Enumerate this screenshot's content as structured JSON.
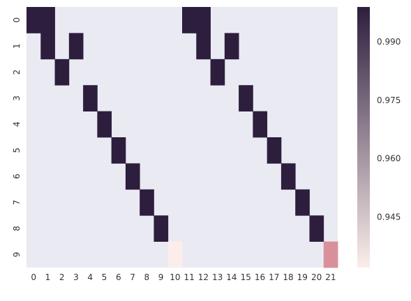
{
  "chart_data": {
    "type": "heatmap",
    "title": "",
    "xlabel": "",
    "ylabel": "",
    "x_tick_labels": [
      "0",
      "1",
      "2",
      "3",
      "4",
      "5",
      "6",
      "7",
      "8",
      "9",
      "10",
      "11",
      "12",
      "13",
      "14",
      "15",
      "16",
      "17",
      "18",
      "19",
      "20",
      "21"
    ],
    "y_tick_labels": [
      "0",
      "1",
      "2",
      "3",
      "4",
      "5",
      "6",
      "7",
      "8",
      "9"
    ],
    "background_color": "#eaeaf2",
    "colormap": [
      "#fbeeea",
      "#f1c8bf",
      "#d98c98",
      "#a65c86",
      "#6b3a6e",
      "#2d1e3e"
    ],
    "color_range": [
      0.932,
      0.999
    ],
    "colorbar_ticks": [
      {
        "label": "0.990",
        "value": 0.99
      },
      {
        "label": "0.975",
        "value": 0.975
      },
      {
        "label": "0.960",
        "value": 0.96
      },
      {
        "label": "0.945",
        "value": 0.945
      }
    ],
    "cells": [
      {
        "row": 0,
        "col": 0,
        "value": 0.999
      },
      {
        "row": 0,
        "col": 1,
        "value": 0.999
      },
      {
        "row": 0,
        "col": 11,
        "value": 0.999
      },
      {
        "row": 0,
        "col": 12,
        "value": 0.999
      },
      {
        "row": 1,
        "col": 1,
        "value": 0.999
      },
      {
        "row": 1,
        "col": 3,
        "value": 0.999
      },
      {
        "row": 1,
        "col": 12,
        "value": 0.999
      },
      {
        "row": 1,
        "col": 14,
        "value": 0.999
      },
      {
        "row": 2,
        "col": 2,
        "value": 0.999
      },
      {
        "row": 2,
        "col": 13,
        "value": 0.999
      },
      {
        "row": 3,
        "col": 4,
        "value": 0.999
      },
      {
        "row": 3,
        "col": 15,
        "value": 0.999
      },
      {
        "row": 4,
        "col": 5,
        "value": 0.999
      },
      {
        "row": 4,
        "col": 16,
        "value": 0.999
      },
      {
        "row": 5,
        "col": 6,
        "value": 0.999
      },
      {
        "row": 5,
        "col": 17,
        "value": 0.999
      },
      {
        "row": 6,
        "col": 7,
        "value": 0.999
      },
      {
        "row": 6,
        "col": 18,
        "value": 0.999
      },
      {
        "row": 7,
        "col": 8,
        "value": 0.999
      },
      {
        "row": 7,
        "col": 19,
        "value": 0.999
      },
      {
        "row": 8,
        "col": 9,
        "value": 0.999
      },
      {
        "row": 8,
        "col": 20,
        "value": 0.999
      },
      {
        "row": 9,
        "col": 10,
        "value": 0.932
      },
      {
        "row": 9,
        "col": 21,
        "value": 0.958
      }
    ]
  }
}
